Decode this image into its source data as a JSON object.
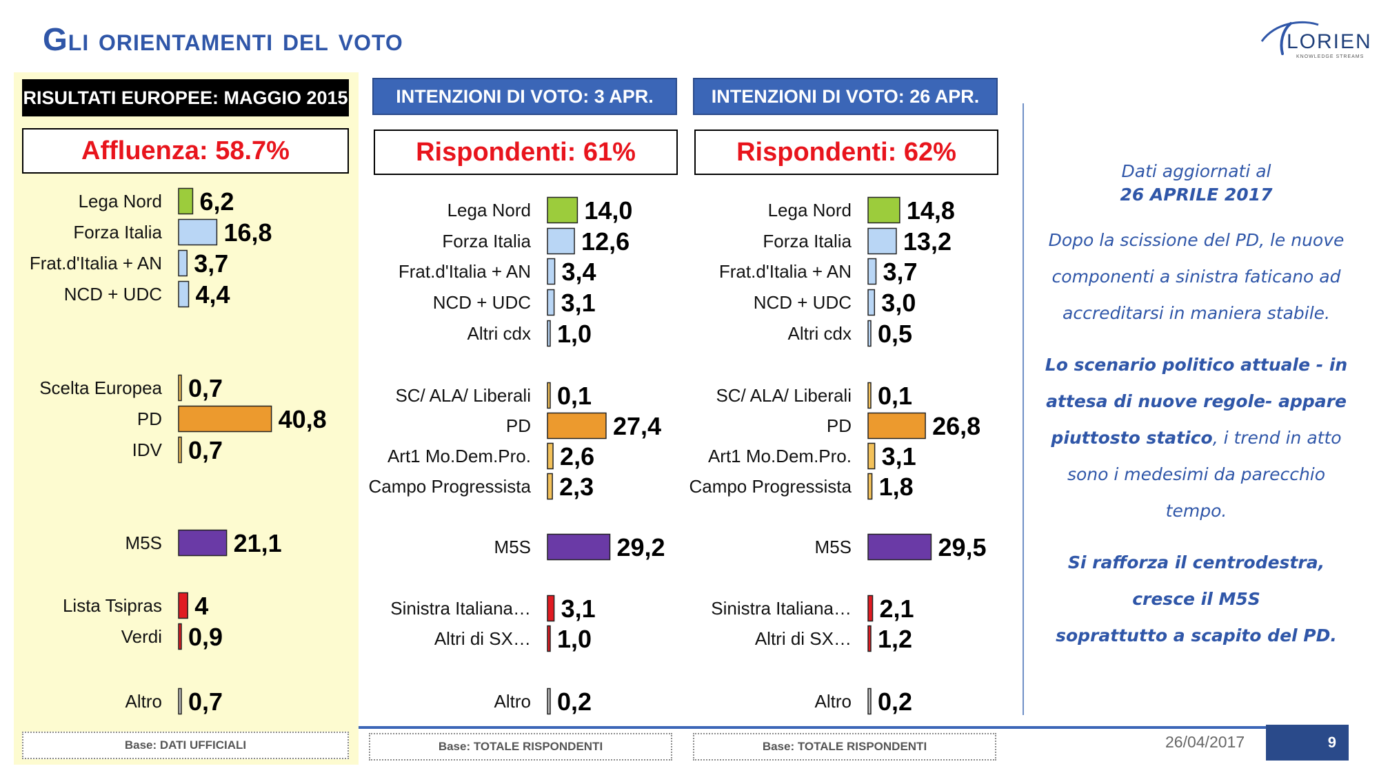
{
  "title": "Gli orientamenti del voto",
  "logo": {
    "text": "LORIEN",
    "subtext": "KNOWLEDGE STREAMS"
  },
  "colors": {
    "lega": "#9ccc3c",
    "fi": "#b9d6f5",
    "fdi": "#b9d6f5",
    "ncd": "#b9d6f5",
    "altri_cdx": "#b9d6f5",
    "centre": "#f3c15a",
    "pd": "#ec9a2e",
    "m5s": "#6a3aa6",
    "left": "#e01b22",
    "other": "#bbbbbb"
  },
  "panels": [
    {
      "header": "RISULTATI EUROPEE:  MAGGIO 2015",
      "subheader": "Affluenza: 58.7%",
      "footer": "Base: DATI UFFICIALI"
    },
    {
      "header": "INTENZIONI DI VOTO: 3 APR.",
      "subheader": "Rispondenti: 61%",
      "footer": "Base: TOTALE RISPONDENTI"
    },
    {
      "header": "INTENZIONI DI VOTO: 26 APR.",
      "subheader": "Rispondenti: 62%",
      "footer": "Base: TOTALE RISPONDENTI"
    }
  ],
  "chart_data": [
    {
      "type": "bar",
      "orientation": "horizontal",
      "title": "RISULTATI EUROPEE:  MAGGIO 2015",
      "categories": [
        "Lega Nord",
        "Forza Italia",
        "Frat.d'Italia + AN",
        "NCD + UDC",
        "Scelta Europea",
        "PD",
        "IDV",
        "M5S",
        "Lista Tsipras",
        "Verdi",
        "Altro"
      ],
      "values": [
        6.2,
        16.8,
        3.7,
        4.4,
        0.7,
        40.8,
        0.7,
        21.1,
        4,
        0.9,
        0.7
      ],
      "value_labels": [
        "6,2",
        "16,8",
        "3,7",
        "4,4",
        "0,7",
        "40,8",
        "0,7",
        "21,1",
        "4",
        "0,9",
        "0,7"
      ],
      "color_keys": [
        "lega",
        "fi",
        "fdi",
        "ncd",
        "centre",
        "pd",
        "centre",
        "m5s",
        "left",
        "left",
        "other"
      ],
      "groups": [
        4,
        3,
        1,
        2,
        1
      ]
    },
    {
      "type": "bar",
      "orientation": "horizontal",
      "title": "INTENZIONI DI VOTO: 3 APR.",
      "categories": [
        "Lega Nord",
        "Forza Italia",
        "Frat.d'Italia + AN",
        "NCD + UDC",
        "Altri cdx",
        "SC/ ALA/ Liberali",
        "PD",
        "Art1 Mo.Dem.Pro.",
        "Campo Progressista",
        "M5S",
        "Sinistra Italiana…",
        "Altri di SX…",
        "Altro"
      ],
      "values": [
        14.0,
        12.6,
        3.4,
        3.1,
        1.0,
        0.1,
        27.4,
        2.6,
        2.3,
        29.2,
        3.1,
        1.0,
        0.2
      ],
      "value_labels": [
        "14,0",
        "12,6",
        "3,4",
        "3,1",
        "1,0",
        "0,1",
        "27,4",
        "2,6",
        "2,3",
        "29,2",
        "3,1",
        "1,0",
        "0,2"
      ],
      "color_keys": [
        "lega",
        "fi",
        "fdi",
        "ncd",
        "altri_cdx",
        "centre",
        "pd",
        "centre",
        "centre",
        "m5s",
        "left",
        "left",
        "other"
      ],
      "groups": [
        5,
        4,
        1,
        2,
        1
      ]
    },
    {
      "type": "bar",
      "orientation": "horizontal",
      "title": "INTENZIONI DI VOTO: 26 APR.",
      "categories": [
        "Lega Nord",
        "Forza Italia",
        "Frat.d'Italia + AN",
        "NCD + UDC",
        "Altri cdx",
        "SC/ ALA/ Liberali",
        "PD",
        "Art1 Mo.Dem.Pro.",
        "Campo Progressista",
        "M5S",
        "Sinistra Italiana…",
        "Altri di SX…",
        "Altro"
      ],
      "values": [
        14.8,
        13.2,
        3.7,
        3.0,
        0.5,
        0.1,
        26.8,
        3.1,
        1.8,
        29.5,
        2.1,
        1.2,
        0.2
      ],
      "value_labels": [
        "14,8",
        "13,2",
        "3,7",
        "3,0",
        "0,5",
        "0,1",
        "26,8",
        "3,1",
        "1,8",
        "29,5",
        "2,1",
        "1,2",
        "0,2"
      ],
      "color_keys": [
        "lega",
        "fi",
        "fdi",
        "ncd",
        "altri_cdx",
        "centre",
        "pd",
        "centre",
        "centre",
        "m5s",
        "left",
        "left",
        "other"
      ],
      "groups": [
        5,
        4,
        1,
        2,
        1
      ]
    }
  ],
  "notes": {
    "date_line1": "Dati aggiornati al",
    "date_line2": "26 APRILE 2017",
    "para1": "Dopo la scissione del PD, le nuove componenti a sinistra faticano ad accreditarsi in maniera stabile.",
    "para2_bold": "Lo scenario politico attuale - in attesa di nuove regole- appare piuttosto statico",
    "para2_rest": ", i trend in atto sono i medesimi da parecchio tempo.",
    "para3_line1": "Si rafforza il centrodestra,",
    "para3_line2": "cresce il M5S",
    "para3_line3": "soprattutto a scapito del PD."
  },
  "footer": {
    "date": "26/04/2017",
    "page": "9"
  }
}
